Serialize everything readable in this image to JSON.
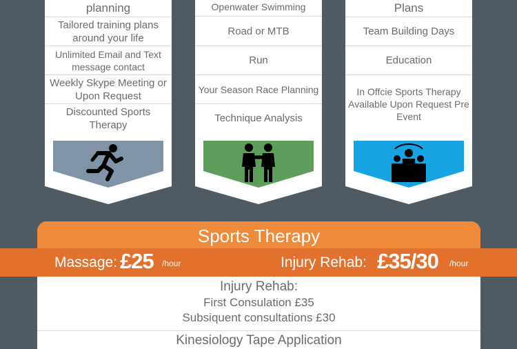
{
  "columns": [
    {
      "id": "coaching",
      "rows": [
        "planning",
        "Tailored training plans around your life",
        "Unlimited Email and Text message contact",
        "Weekly Skype Meeting or Upon Request",
        "Discounted Sports Therapy"
      ],
      "icon": "runner-icon",
      "color": "#8193a6"
    },
    {
      "id": "multisport",
      "rows": [
        "Openwater Swimming",
        "Road or MTB",
        "Run",
        "Your Season Race Planning",
        "Technique Analysis"
      ],
      "icon": "handshake-icon",
      "color": "#5c9e5a"
    },
    {
      "id": "corporate",
      "rows": [
        "Plans",
        "Team Building Days",
        "Education",
        "In Offcie Sports Therapy Available Upon Request Pre Event"
      ],
      "icon": "team-icon",
      "color": "#16a4e3"
    }
  ],
  "therapy": {
    "title": "Sports Therapy",
    "massage_label": "Massage:",
    "massage_price": "£25",
    "massage_unit": "/hour",
    "rehab_label": "Injury Rehab:",
    "rehab_price": "£35/30",
    "rehab_unit": "/hour",
    "rehab_heading": "Injury Rehab:",
    "rehab_line1": "First Consulation £35",
    "rehab_line2": "Subsiquent consultations £30",
    "next_item": "Kinesiology Tape Application"
  },
  "colors": {
    "background": "#4f5a63",
    "orange": "#ee8a39",
    "dark_orange": "#e2712d"
  }
}
